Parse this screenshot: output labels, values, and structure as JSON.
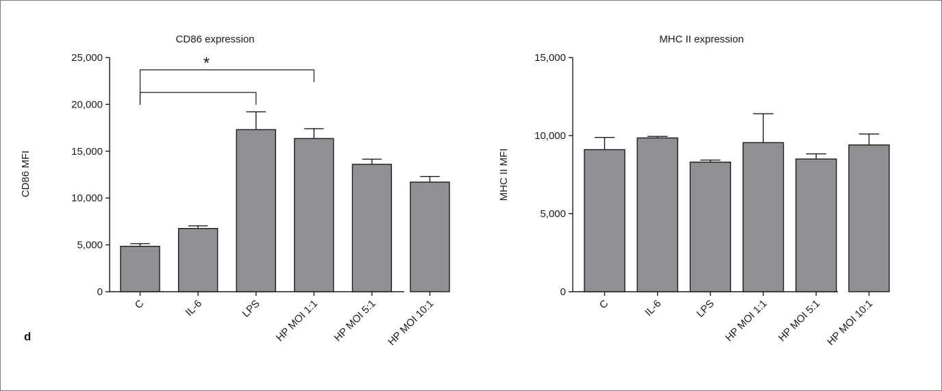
{
  "panel_label": "d",
  "chart_data": [
    {
      "type": "bar",
      "title": "CD86 expression",
      "xlabel": "",
      "ylabel": "CD86 MFI",
      "categories": [
        "C",
        "IL-6",
        "LPS",
        "HP MOI 1:1",
        "HP MOI 5:1",
        "HP MOI 10:1"
      ],
      "values": [
        4850,
        6750,
        17300,
        16350,
        13600,
        11700
      ],
      "errors": [
        280,
        280,
        1900,
        1050,
        550,
        600
      ],
      "ylim": [
        0,
        25000
      ],
      "yticks": [
        0,
        5000,
        10000,
        15000,
        20000,
        25000
      ],
      "ytick_labels": [
        "0",
        "5,000",
        "10,000",
        "15,000",
        "20,000",
        "25,000"
      ],
      "grid": false,
      "significance": [
        {
          "from": "C",
          "to": "LPS",
          "label": "*"
        },
        {
          "from": "C",
          "to": "HP MOI 1:1",
          "label": "*"
        }
      ],
      "significance_label": "*"
    },
    {
      "type": "bar",
      "title": "MHC II expression",
      "xlabel": "",
      "ylabel": "MHC II MFI",
      "categories": [
        "C",
        "IL-6",
        "LPS",
        "HP MOI 1:1",
        "HP MOI 5:1",
        "HP MOI 10:1"
      ],
      "values": [
        9100,
        9850,
        8300,
        9550,
        8500,
        9400
      ],
      "errors": [
        780,
        100,
        130,
        1850,
        330,
        700
      ],
      "ylim": [
        0,
        15000
      ],
      "yticks": [
        0,
        5000,
        10000,
        15000
      ],
      "ytick_labels": [
        "0",
        "5,000",
        "10,000",
        "15,000"
      ],
      "grid": false
    }
  ]
}
